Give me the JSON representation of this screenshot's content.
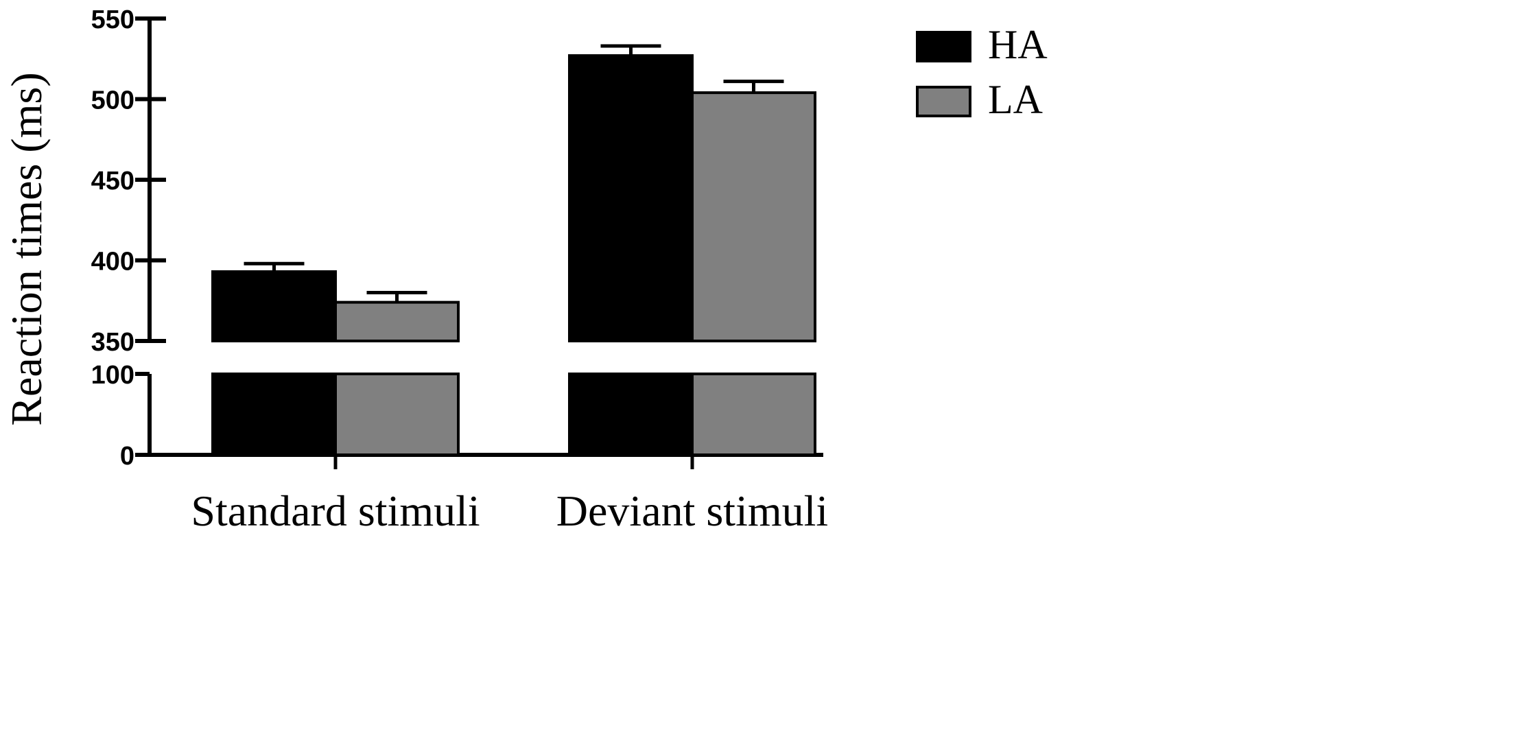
{
  "chart_data": {
    "type": "bar",
    "ylabel": "Reaction times (ms)",
    "categories": [
      "Standard stimuli",
      "Deviant stimuli"
    ],
    "series": [
      {
        "name": "HA",
        "color": "#000000",
        "values": [
          393,
          527
        ],
        "errors": [
          5,
          6
        ]
      },
      {
        "name": "LA",
        "color": "#808080",
        "values": [
          374,
          504
        ],
        "errors": [
          6,
          7
        ]
      }
    ],
    "y_axis_break": {
      "lower_segment": [
        0,
        100
      ],
      "upper_segment": [
        350,
        550
      ]
    },
    "y_ticks_lower": [
      "0",
      "100"
    ],
    "y_ticks_upper": [
      "350",
      "400",
      "450",
      "500",
      "550"
    ],
    "legend_position": "top-right",
    "grid": false
  }
}
